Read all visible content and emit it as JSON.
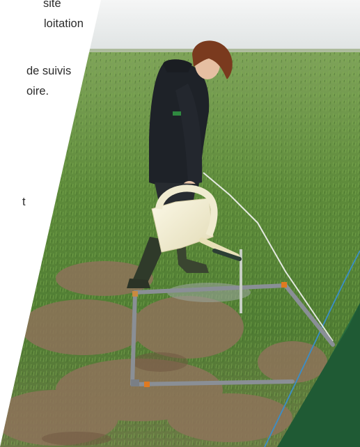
{
  "page": {
    "text_lines": [
      "sité",
      "loitation",
      "de suivis",
      "oire.",
      "t"
    ]
  },
  "photo": {
    "alt": "",
    "colors": {
      "sky": "#e9ecec",
      "field_green": "#5f8a3c",
      "soil": "#8a6e55",
      "frame_pipe": "#8a8f96",
      "jacket": "#1e2228",
      "watering_can": "#f2edd2",
      "corner_green": "#1f5a34",
      "string_blue": "#3a8ec8"
    }
  }
}
